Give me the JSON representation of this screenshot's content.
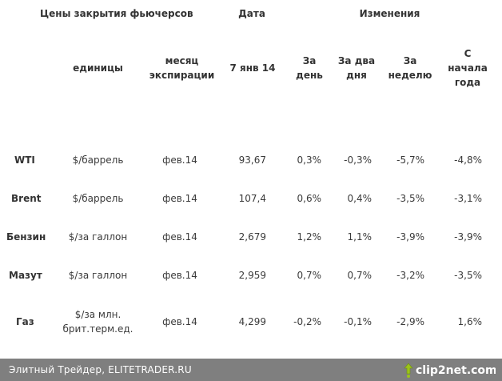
{
  "header": {
    "group_title": "Цены закрытия фьючерсов",
    "date_label": "Дата",
    "changes_label": "Изменения",
    "col_units": "единицы",
    "col_expiry": "месяц экспирации",
    "col_date": "7 янв 14",
    "col_day": "За день",
    "col_two_days": "За два дня",
    "col_week": "За неделю",
    "col_ytd": "С начала года"
  },
  "rows": [
    {
      "name": "WTI",
      "units": "$/баррель",
      "expiry": "фев.14",
      "price": "93,67",
      "day": "0,3%",
      "two_days": "-0,3%",
      "week": "-5,7%",
      "ytd": "-4,8%"
    },
    {
      "name": "Brent",
      "units": "$/баррель",
      "expiry": "фев.14",
      "price": "107,4",
      "day": "0,6%",
      "two_days": "0,4%",
      "week": "-3,5%",
      "ytd": "-3,1%"
    },
    {
      "name": "Бензин",
      "units": "$/за галлон",
      "expiry": "фев.14",
      "price": "2,679",
      "day": "1,2%",
      "two_days": "1,1%",
      "week": "-3,9%",
      "ytd": "-3,9%"
    },
    {
      "name": "Мазут",
      "units": "$/за галлон",
      "expiry": "фев.14",
      "price": "2,959",
      "day": "0,7%",
      "two_days": "0,7%",
      "week": "-3,2%",
      "ytd": "-3,5%"
    },
    {
      "name": "Газ",
      "units": "$/за млн. брит.терм.ед.",
      "expiry": "фев.14",
      "price": "4,299",
      "day": "-0,2%",
      "two_days": "-0,1%",
      "week": "-2,9%",
      "ytd": "1,6%"
    }
  ],
  "footer": {
    "source": "Элитный Трейдер, ELITETRADER.RU",
    "logo_text": "clip2net.com"
  },
  "colors": {
    "footer_bg": "#7f7f7f",
    "logo_green": "#9bc31b"
  }
}
